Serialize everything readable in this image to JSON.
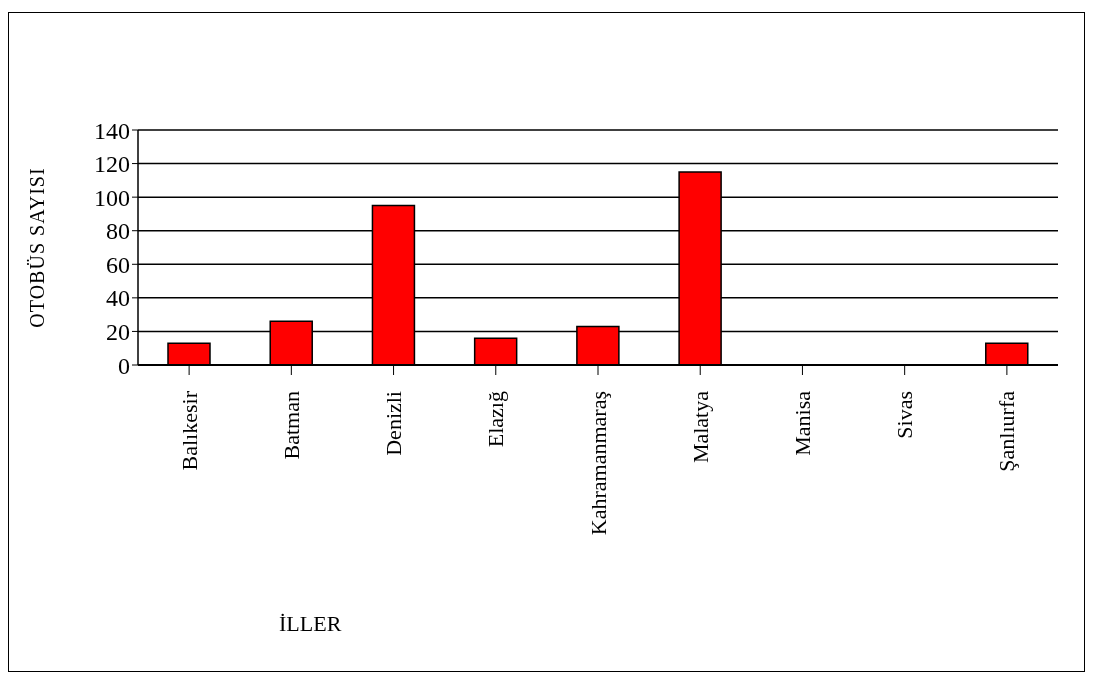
{
  "chart_data": {
    "type": "bar",
    "xlabel": "İLLER",
    "ylabel": "OTOBÜS SAYISI",
    "categories": [
      "Balıkesir",
      "Batman",
      "Denizli",
      "Elazığ",
      "Kahramanmaraş",
      "Malatya",
      "Manisa",
      "Sivas",
      "Şanlıurfa"
    ],
    "values": [
      13,
      26,
      95,
      16,
      23,
      115,
      0,
      0,
      13
    ],
    "color": "#ff0000",
    "ylim": [
      0,
      140
    ],
    "yticks": [
      0,
      20,
      40,
      60,
      80,
      100,
      120,
      140
    ],
    "grid": "y"
  }
}
